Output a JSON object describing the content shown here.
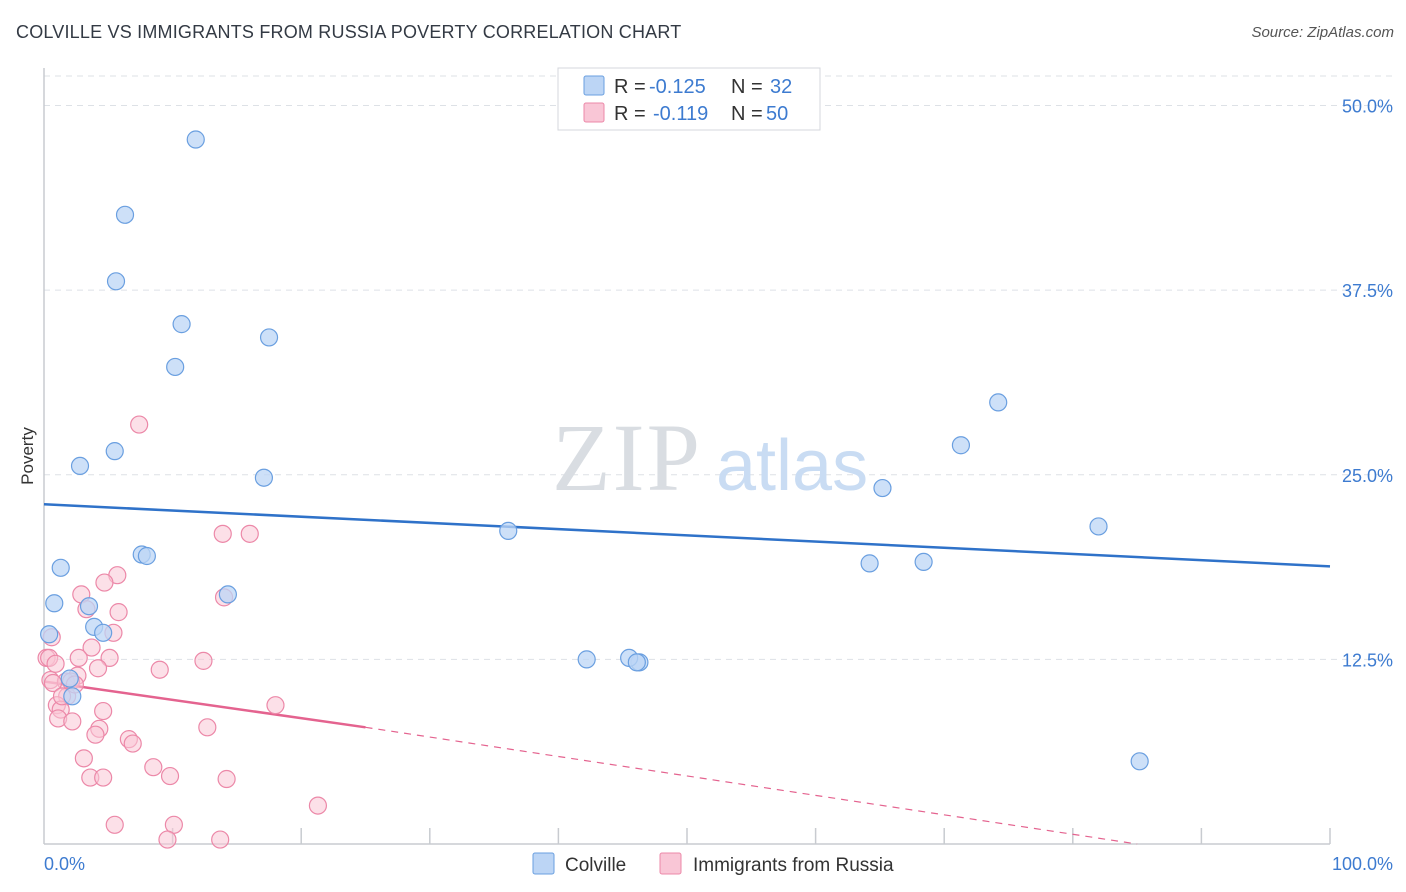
{
  "header": {
    "title": "COLVILLE VS IMMIGRANTS FROM RUSSIA POVERTY CORRELATION CHART",
    "source": "Source: ZipAtlas.com"
  },
  "watermark": {
    "zip": "ZIP",
    "atlas": "atlas"
  },
  "colors": {
    "blue_fill": "#bcd5f5",
    "blue_stroke": "#6a9fe0",
    "blue_line": "#2f72c9",
    "pink_fill": "#f9c6d6",
    "pink_stroke": "#ec88a8",
    "pink_line": "#e4638f",
    "tick_text": "#3d7bd0",
    "grid": "#dde1e6"
  },
  "chart_data": {
    "type": "scatter",
    "title": "COLVILLE VS IMMIGRANTS FROM RUSSIA POVERTY CORRELATION CHART",
    "xlabel": "",
    "ylabel": "Poverty",
    "xlim": [
      0,
      100
    ],
    "ylim": [
      0,
      52
    ],
    "x_tick_labels": [
      {
        "value": 0,
        "label": "0.0%"
      },
      {
        "value": 100,
        "label": "100.0%"
      }
    ],
    "y_tick_labels": [
      {
        "value": 12.5,
        "label": "12.5%"
      },
      {
        "value": 25.0,
        "label": "25.0%"
      },
      {
        "value": 37.5,
        "label": "37.5%"
      },
      {
        "value": 50.0,
        "label": "50.0%"
      }
    ],
    "y_gridlines": [
      12.5,
      25.0,
      37.5,
      50.0,
      52.0
    ],
    "x_minor_ticks": [
      10,
      20,
      30,
      40,
      50,
      60,
      70,
      80,
      90,
      100
    ],
    "legend": [
      {
        "name": "Colville",
        "r_label": "R =",
        "r_value": "-0.125",
        "n_label": "N =",
        "n_value": "32"
      },
      {
        "name": "Immigrants from Russia",
        "r_label": "R =",
        "r_value": "-0.119",
        "n_label": "N =",
        "n_value": "50"
      }
    ],
    "series": [
      {
        "name": "Colville",
        "color": "blue",
        "points": [
          [
            11.8,
            47.7
          ],
          [
            6.3,
            42.6
          ],
          [
            5.6,
            38.1
          ],
          [
            10.7,
            35.2
          ],
          [
            17.5,
            34.3
          ],
          [
            10.2,
            32.3
          ],
          [
            7.6,
            19.6
          ],
          [
            8.0,
            19.5
          ],
          [
            5.5,
            26.6
          ],
          [
            2.8,
            25.6
          ],
          [
            17.1,
            24.8
          ],
          [
            1.3,
            18.7
          ],
          [
            0.8,
            16.3
          ],
          [
            3.5,
            16.1
          ],
          [
            14.3,
            16.9
          ],
          [
            3.9,
            14.7
          ],
          [
            4.6,
            14.3
          ],
          [
            0.4,
            14.2
          ],
          [
            2.0,
            11.2
          ],
          [
            2.2,
            10.0
          ],
          [
            42.2,
            12.5
          ],
          [
            36.1,
            21.2
          ],
          [
            46.3,
            12.3
          ],
          [
            45.5,
            12.6
          ],
          [
            46.1,
            12.3
          ],
          [
            74.2,
            29.9
          ],
          [
            71.3,
            27.0
          ],
          [
            65.2,
            24.1
          ],
          [
            64.2,
            19.0
          ],
          [
            68.4,
            19.1
          ],
          [
            82.0,
            21.5
          ],
          [
            85.2,
            5.6
          ]
        ],
        "trend": {
          "x": [
            0,
            100
          ],
          "y": [
            23.0,
            18.8
          ],
          "style": "solid"
        }
      },
      {
        "name": "Immigrants from Russia",
        "color": "pink",
        "points": [
          [
            7.4,
            28.4
          ],
          [
            13.9,
            21.0
          ],
          [
            16.0,
            21.0
          ],
          [
            5.7,
            18.2
          ],
          [
            4.7,
            17.7
          ],
          [
            2.9,
            16.9
          ],
          [
            14.0,
            16.7
          ],
          [
            3.3,
            15.9
          ],
          [
            5.8,
            15.7
          ],
          [
            5.4,
            14.3
          ],
          [
            0.6,
            14.0
          ],
          [
            3.7,
            13.3
          ],
          [
            12.4,
            12.4
          ],
          [
            5.1,
            12.6
          ],
          [
            2.7,
            12.6
          ],
          [
            4.2,
            11.9
          ],
          [
            9.0,
            11.8
          ],
          [
            2.6,
            11.4
          ],
          [
            0.5,
            11.1
          ],
          [
            1.7,
            11.0
          ],
          [
            2.1,
            11.0
          ],
          [
            1.8,
            10.0
          ],
          [
            1.0,
            9.4
          ],
          [
            18.0,
            9.4
          ],
          [
            1.3,
            9.1
          ],
          [
            4.6,
            9.0
          ],
          [
            1.1,
            8.5
          ],
          [
            2.2,
            8.3
          ],
          [
            12.7,
            7.9
          ],
          [
            4.3,
            7.8
          ],
          [
            4.0,
            7.4
          ],
          [
            6.6,
            7.1
          ],
          [
            6.9,
            6.8
          ],
          [
            3.1,
            5.8
          ],
          [
            8.5,
            5.2
          ],
          [
            3.6,
            4.5
          ],
          [
            4.6,
            4.5
          ],
          [
            9.8,
            4.6
          ],
          [
            14.2,
            4.4
          ],
          [
            21.3,
            2.6
          ],
          [
            5.5,
            1.3
          ],
          [
            10.1,
            1.3
          ],
          [
            9.6,
            0.3
          ],
          [
            13.7,
            0.3
          ],
          [
            0.2,
            12.6
          ],
          [
            0.4,
            12.6
          ],
          [
            0.7,
            10.9
          ],
          [
            1.4,
            10.0
          ],
          [
            2.4,
            10.8
          ],
          [
            0.9,
            12.2
          ]
        ],
        "trend_solid": {
          "x": [
            0,
            25
          ],
          "y": [
            11.0,
            7.9
          ]
        },
        "trend_dashed": {
          "x": [
            25,
            85
          ],
          "y": [
            7.9,
            0.0
          ]
        }
      }
    ]
  }
}
